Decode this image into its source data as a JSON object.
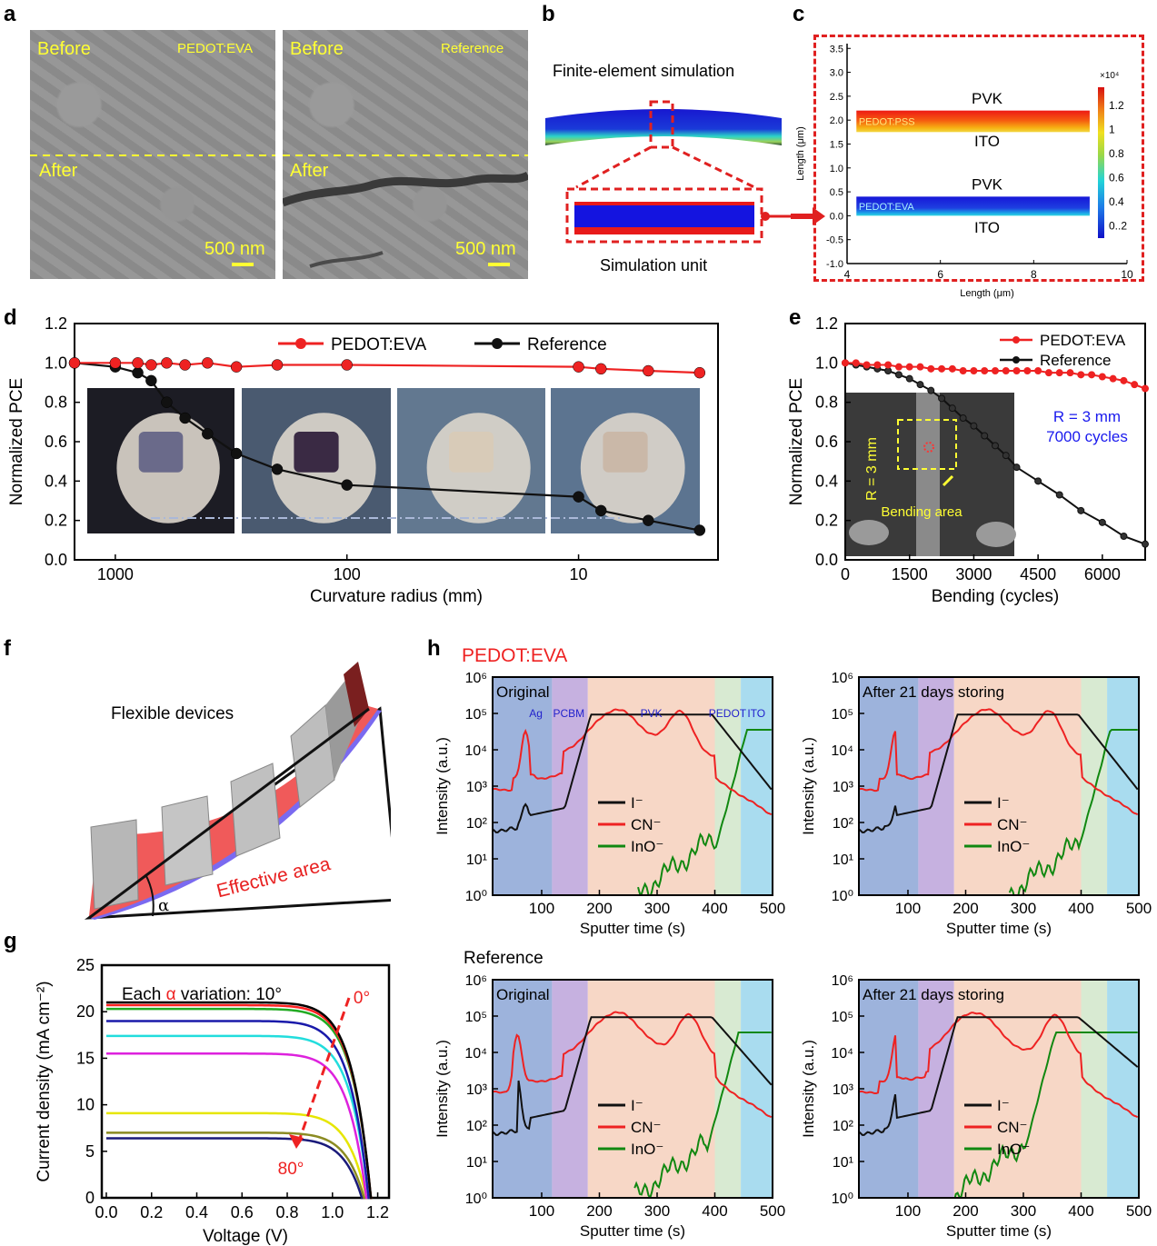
{
  "panels": {
    "a": {
      "label": "a",
      "left": {
        "before": "Before",
        "after": "After",
        "tag": "PEDOT:EVA",
        "scale": "500 nm"
      },
      "right": {
        "before": "Before",
        "after": "After",
        "tag": "Reference",
        "scale": "500 nm"
      }
    },
    "b": {
      "label": "b",
      "title": "Finite-element simulation",
      "unit": "Simulation unit"
    },
    "c": {
      "label": "c",
      "pvk1": "PVK",
      "pss": "PEDOT:PSS",
      "ito1": "ITO",
      "pvk2": "PVK",
      "eva": "PEDOT:EVA",
      "ito2": "ITO",
      "cb_exp": "×10⁴"
    },
    "d": {
      "label": "d"
    },
    "e": {
      "label": "e",
      "note_r": "R = 3 mm",
      "note_cycles": "7000 cycles",
      "inset_r": "R = 3 mm",
      "inset_area": "Bending area"
    },
    "f": {
      "label": "f",
      "title": "Flexible devices",
      "area": "Effective area",
      "alpha": "α"
    },
    "g": {
      "label": "g",
      "note_pre": "Each",
      "note_alpha": "α",
      "note_post": "variation: 10°",
      "deg0": "0°",
      "deg80": "80°"
    },
    "h": {
      "label": "h",
      "group1": "PEDOT:EVA",
      "group2": "Reference",
      "layers": [
        "Ag",
        "PCBM",
        "PVK",
        "PEDOT",
        "ITO"
      ],
      "sub_original": "Original",
      "sub_after": "After 21 days storing"
    }
  },
  "chart_data": [
    {
      "id": "c",
      "type": "heatmap",
      "xlabel": "Length (μm)",
      "ylabel": "Length (μm)",
      "xlim": [
        4,
        10
      ],
      "ylim": [
        -1.0,
        3.6
      ],
      "x_ticks": [
        "4",
        "6",
        "8",
        "10"
      ],
      "y_ticks": [
        "-1.0",
        "-0.5",
        "0.0",
        "0.5",
        "1.0",
        "1.5",
        "2.0",
        "2.5",
        "3.0",
        "3.5"
      ],
      "colorbar_ticks": [
        "1.2",
        "1",
        "0.8",
        "0.6",
        "0.4",
        "0..2"
      ],
      "colorbar_range": [
        0.1,
        1.35
      ]
    },
    {
      "id": "d",
      "type": "line",
      "xlabel": "Curvature radius (mm)",
      "ylabel": "Normalized PCE",
      "x_scale": "log-reversed",
      "xlim": [
        1500,
        2.5
      ],
      "ylim": [
        0.0,
        1.2
      ],
      "x_ticks": [
        "1000",
        "100",
        "10"
      ],
      "y_ticks": [
        "0.0",
        "0.2",
        "0.4",
        "0.6",
        "0.8",
        "1.0",
        "1.2"
      ],
      "series": [
        {
          "name": "PEDOT:EVA",
          "color": "#ee2222",
          "x": [
            1500,
            1000,
            800,
            700,
            600,
            500,
            400,
            300,
            200,
            100,
            10,
            8,
            5,
            3
          ],
          "y": [
            1.0,
            1.0,
            1.0,
            0.99,
            1.0,
            0.99,
            1.0,
            0.98,
            0.99,
            0.99,
            0.98,
            0.97,
            0.96,
            0.95
          ]
        },
        {
          "name": "Reference",
          "color": "#111111",
          "x": [
            1500,
            1000,
            800,
            700,
            600,
            500,
            400,
            300,
            200,
            100,
            10,
            8,
            5,
            3
          ],
          "y": [
            1.0,
            0.98,
            0.95,
            0.91,
            0.8,
            0.72,
            0.64,
            0.54,
            0.46,
            0.38,
            0.32,
            0.25,
            0.2,
            0.15
          ]
        }
      ]
    },
    {
      "id": "e",
      "type": "line",
      "xlabel": "Bending (cycles)",
      "ylabel": "Normalized PCE",
      "xlim": [
        0,
        7000
      ],
      "ylim": [
        0.0,
        1.2
      ],
      "x_ticks": [
        "0",
        "1500",
        "3000",
        "4500",
        "6000"
      ],
      "y_ticks": [
        "0.0",
        "0.2",
        "0.4",
        "0.6",
        "0.8",
        "1.0",
        "1.2"
      ],
      "series": [
        {
          "name": "PEDOT:EVA",
          "color": "#ee2222",
          "x": [
            0,
            250,
            500,
            750,
            1000,
            1250,
            1500,
            1750,
            2000,
            2250,
            2500,
            2750,
            3000,
            3250,
            3500,
            3750,
            4000,
            4250,
            4500,
            4750,
            5000,
            5250,
            5500,
            5750,
            6000,
            6250,
            6500,
            6750,
            7000
          ],
          "y": [
            1.0,
            1.0,
            0.99,
            0.99,
            0.99,
            0.98,
            0.98,
            0.98,
            0.97,
            0.97,
            0.97,
            0.96,
            0.96,
            0.96,
            0.96,
            0.96,
            0.96,
            0.96,
            0.96,
            0.95,
            0.95,
            0.95,
            0.94,
            0.94,
            0.93,
            0.92,
            0.91,
            0.89,
            0.87
          ]
        },
        {
          "name": "Reference",
          "color": "#111111",
          "x": [
            0,
            250,
            500,
            750,
            1000,
            1250,
            1500,
            1750,
            2000,
            2250,
            2500,
            2750,
            3000,
            3250,
            3500,
            3750,
            4000,
            4500,
            5000,
            5500,
            6000,
            6500,
            7000
          ],
          "y": [
            1.0,
            0.99,
            0.98,
            0.97,
            0.96,
            0.94,
            0.92,
            0.89,
            0.86,
            0.82,
            0.77,
            0.72,
            0.68,
            0.63,
            0.58,
            0.53,
            0.47,
            0.4,
            0.33,
            0.25,
            0.19,
            0.12,
            0.08
          ]
        }
      ]
    },
    {
      "id": "g",
      "type": "line",
      "xlabel": "Voltage (V)",
      "ylabel": "Current density (mA cm⁻²)",
      "xlim": [
        -0.02,
        1.25
      ],
      "ylim": [
        0,
        25
      ],
      "x_ticks": [
        "0.0",
        "0.2",
        "0.4",
        "0.6",
        "0.8",
        "1.0",
        "1.2"
      ],
      "y_ticks": [
        "0",
        "5",
        "10",
        "15",
        "20",
        "25"
      ],
      "curves": [
        {
          "color": "#000000",
          "jsc": 21.0,
          "voc": 1.17
        },
        {
          "color": "#ff2222",
          "jsc": 20.7,
          "voc": 1.17
        },
        {
          "color": "#22aa22",
          "jsc": 20.3,
          "voc": 1.17
        },
        {
          "color": "#1a1aaa",
          "jsc": 19.0,
          "voc": 1.16
        },
        {
          "color": "#22dddd",
          "jsc": 17.4,
          "voc": 1.16
        },
        {
          "color": "#dd22dd",
          "jsc": 15.5,
          "voc": 1.15
        },
        {
          "color": "#e6e600",
          "jsc": 9.1,
          "voc": 1.15
        },
        {
          "color": "#8b8b22",
          "jsc": 7.0,
          "voc": 1.14
        },
        {
          "color": "#1a1a7a",
          "jsc": 6.4,
          "voc": 1.13
        }
      ]
    },
    {
      "id": "h",
      "type": "line",
      "xlabel": "Sputter time (s)",
      "ylabel": "Intensity (a.u.)",
      "x_scale": "linear",
      "y_scale": "log",
      "xlim": [
        15,
        500
      ],
      "ylim": [
        1,
        1000000
      ],
      "x_ticks": [
        "100",
        "200",
        "300",
        "400",
        "500"
      ],
      "y_ticks": [
        "10⁰",
        "10¹",
        "10²",
        "10³",
        "10⁴",
        "10⁵",
        "10⁶"
      ],
      "legend": [
        "I⁻",
        "CN⁻",
        "InO⁻"
      ],
      "series_colors": [
        "#111111",
        "#ee2222",
        "#118811"
      ]
    }
  ]
}
